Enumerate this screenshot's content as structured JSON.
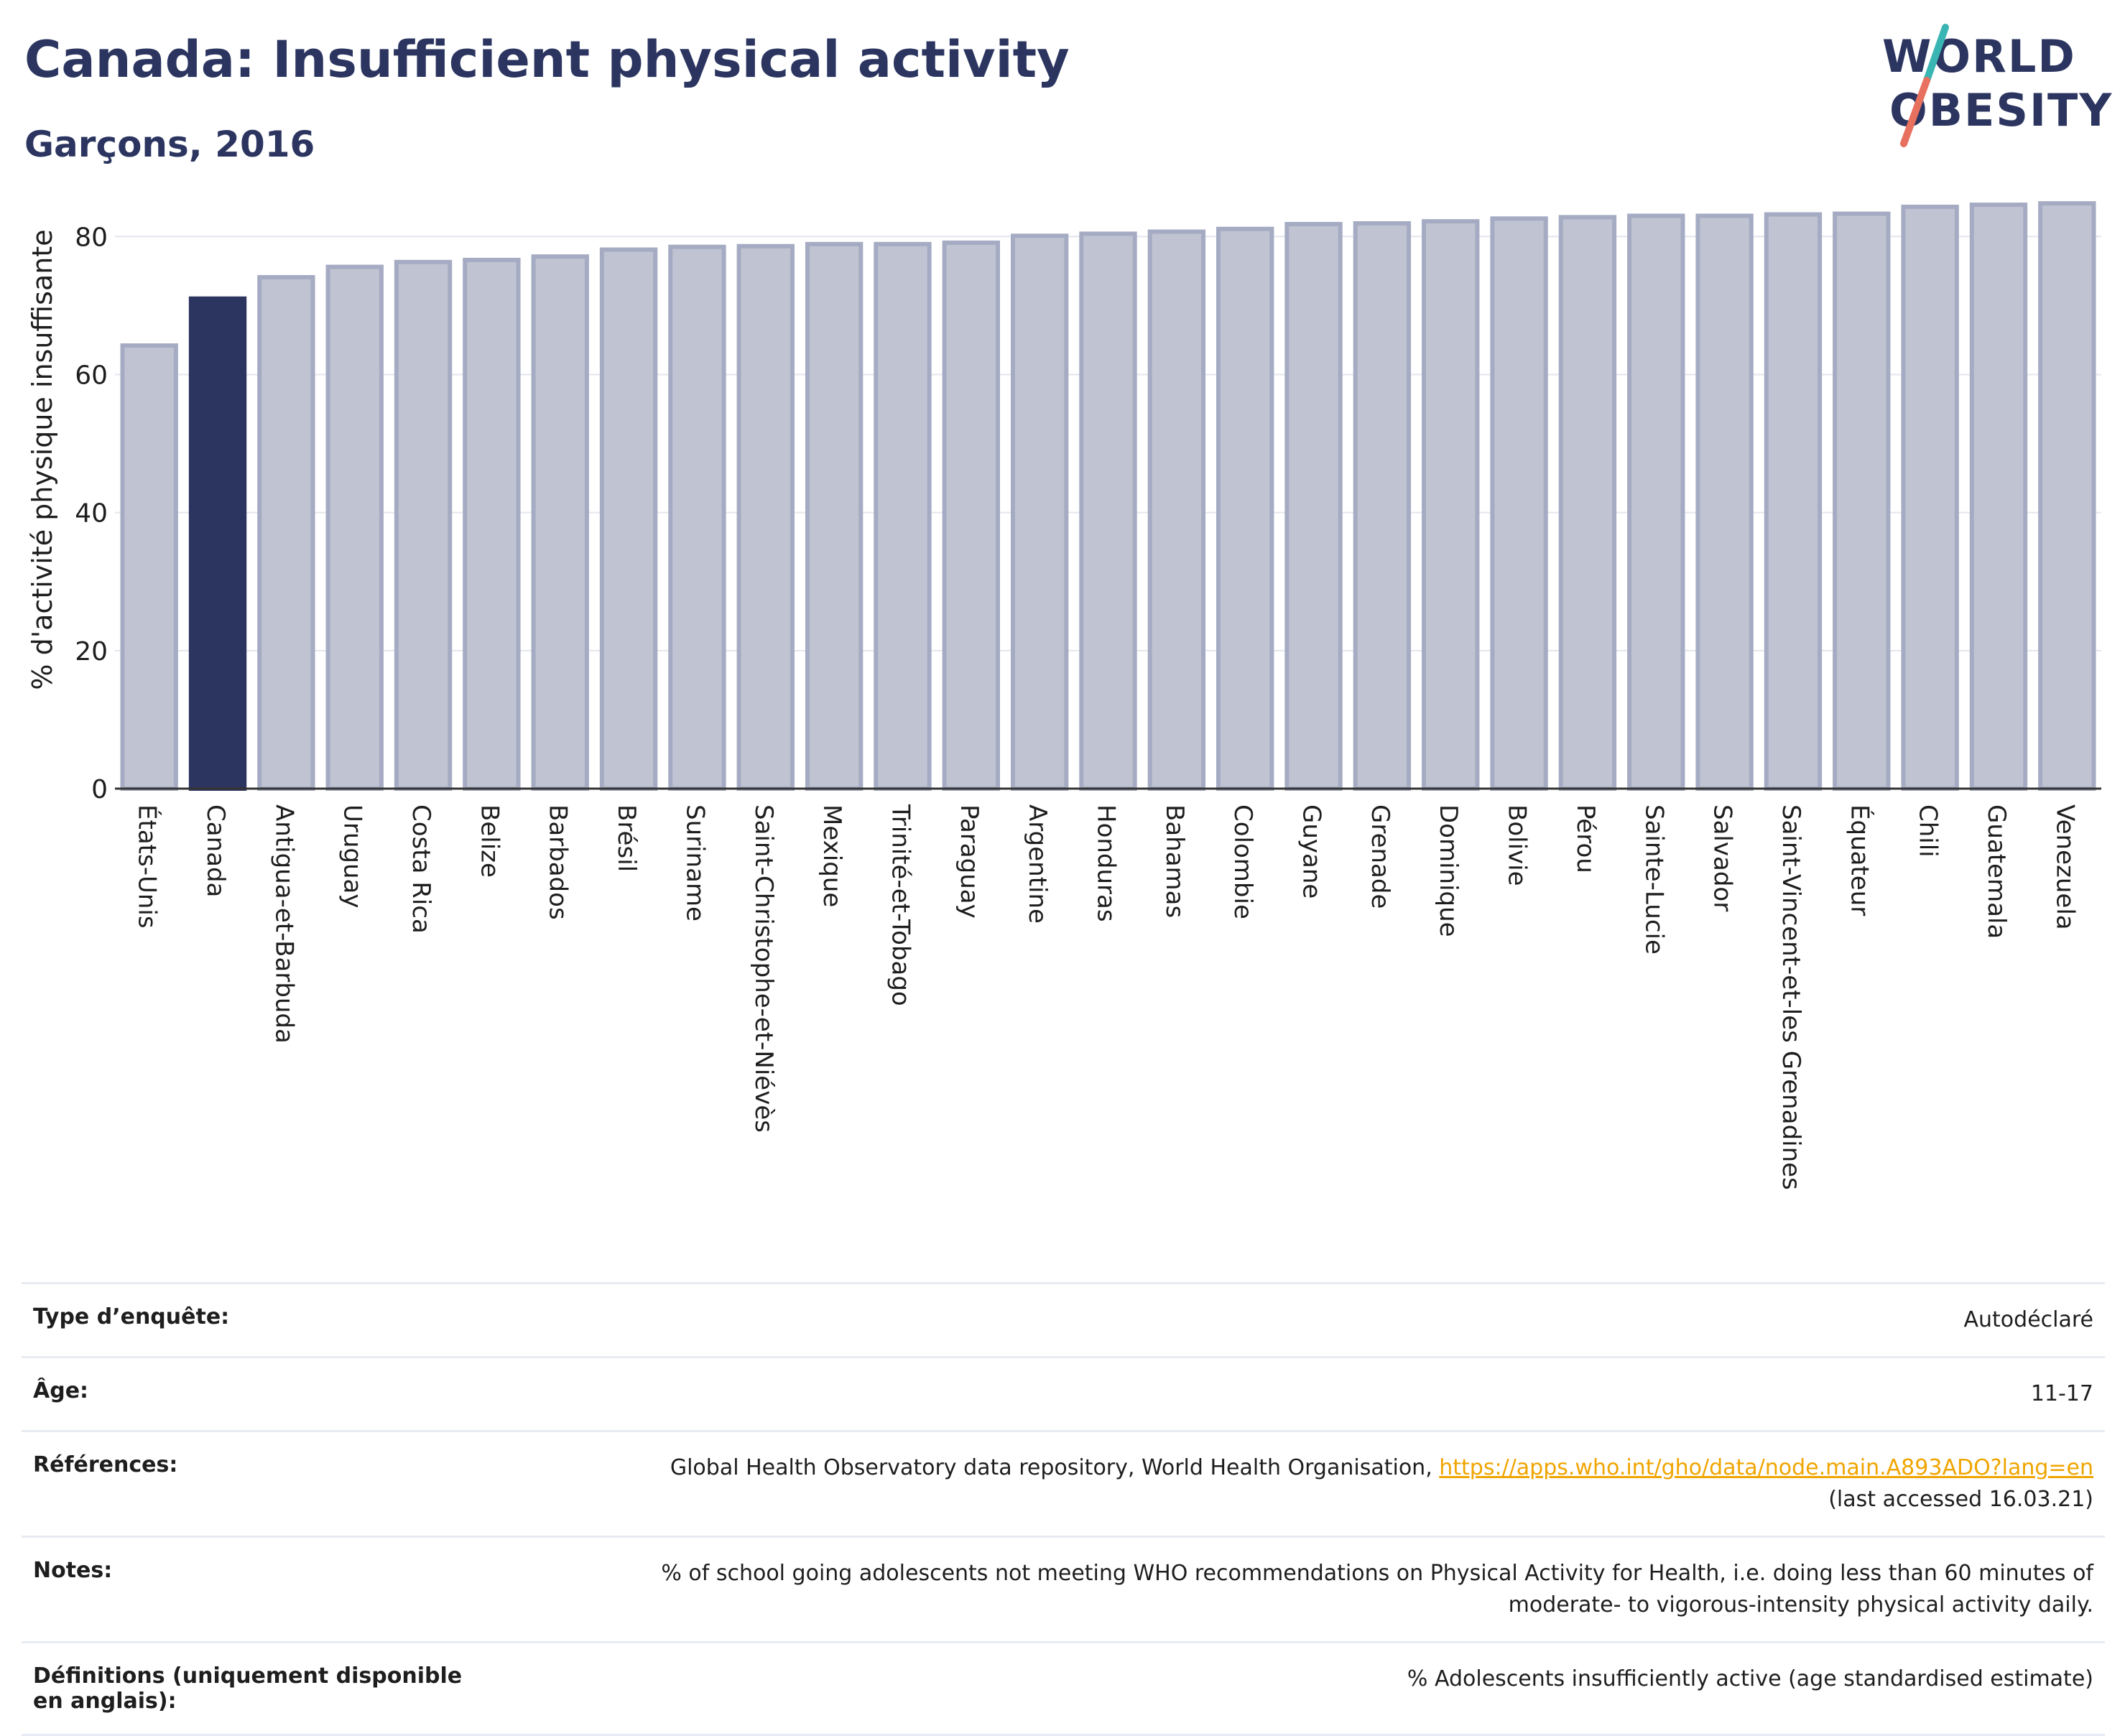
{
  "header": {
    "title": "Canada: Insufficient physical activity",
    "subtitle": "Garçons, 2016",
    "logo_text": [
      "WORLD",
      "OBESITY"
    ]
  },
  "colors": {
    "highlight": "#2b3560",
    "bar_fill": "#c0c4d2",
    "bar_stroke": "#a5abc2",
    "accent_link": "#f0a500",
    "logo_teal": "#39b6b4",
    "logo_coral": "#e8705e"
  },
  "chart_data": {
    "type": "bar",
    "ylabel": "% d'activité physique insuffisante",
    "ylim": [
      0,
      87
    ],
    "yticks": [
      0,
      20,
      40,
      60,
      80
    ],
    "grid": true,
    "highlight": "Canada",
    "categories": [
      "États-Unis",
      "Canada",
      "Antigua-et-Barbuda",
      "Uruguay",
      "Costa Rica",
      "Belize",
      "Barbados",
      "Brésil",
      "Suriname",
      "Saint-Christophe-et-Niévès",
      "Mexique",
      "Trinité-et-Tobago",
      "Paraguay",
      "Argentine",
      "Honduras",
      "Bahamas",
      "Colombie",
      "Guyane",
      "Grenade",
      "Dominique",
      "Bolivie",
      "Pérou",
      "Sainte-Lucie",
      "Salvador",
      "Saint-Vincent-et-les Grenadines",
      "Équateur",
      "Chili",
      "Guatemala",
      "Venezuela"
    ],
    "values": [
      64.2,
      71.0,
      74.1,
      75.6,
      76.3,
      76.6,
      77.1,
      78.1,
      78.5,
      78.6,
      78.9,
      78.9,
      79.1,
      80.1,
      80.4,
      80.7,
      81.1,
      81.8,
      81.9,
      82.2,
      82.6,
      82.8,
      83.0,
      83.0,
      83.2,
      83.3,
      84.3,
      84.6,
      84.8
    ]
  },
  "info": {
    "rows": [
      {
        "label": "Type d’enquête:",
        "value": "Autodéclaré"
      },
      {
        "label": "Âge:",
        "value": "11-17"
      },
      {
        "label": "Références:",
        "value": "Global Health Observatory data repository, World Health Organisation, ",
        "link": "https://apps.who.int/gho/data/node.main.A893ADO?lang=en",
        "value2": "(last accessed 16.03.21)"
      },
      {
        "label": "Notes:",
        "value": "% of school going adolescents not meeting WHO recommendations on Physical Activity for Health, i.e. doing less than 60 minutes of",
        "value2": "moderate- to vigorous-intensity physical activity daily."
      },
      {
        "label": "Définitions (uniquement disponible en anglais):",
        "value": "% Adolescents insufficiently active (age standardised estimate)"
      }
    ]
  }
}
